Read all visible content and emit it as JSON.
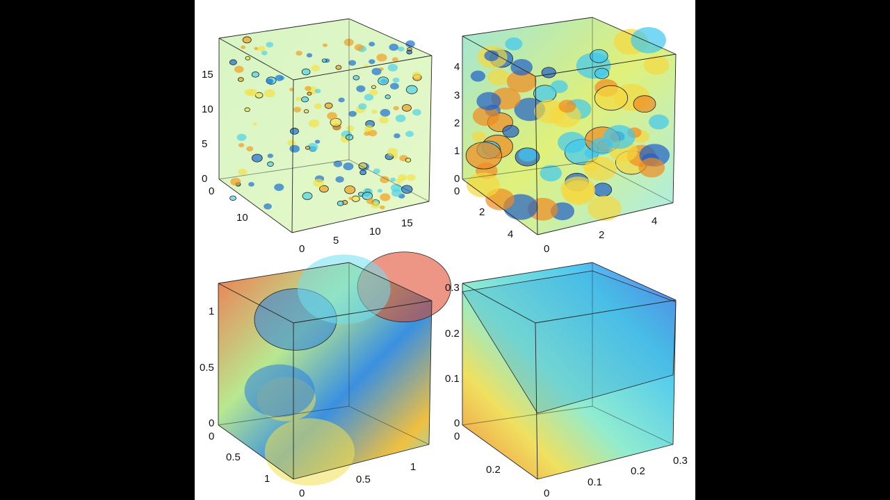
{
  "chart_data": [
    {
      "type": "volume-3d",
      "name": "top-left",
      "z_ticks": [
        "0",
        "5",
        "10",
        "15"
      ],
      "y_ticks": [
        "0",
        "10"
      ],
      "x_ticks": [
        "0",
        "5",
        "10",
        "15"
      ],
      "axis_range": [
        0,
        20
      ],
      "colors": [
        "#4fd3e8",
        "#f2e24a",
        "#f0a020",
        "#1a70d0"
      ]
    },
    {
      "type": "volume-3d",
      "name": "top-right",
      "z_ticks": [
        "0",
        "1",
        "2",
        "3",
        "4"
      ],
      "y_ticks": [
        "0",
        "2",
        "4"
      ],
      "x_ticks": [
        "0",
        "2",
        "4"
      ],
      "axis_range": [
        0,
        5
      ],
      "colors": [
        "#3ec8f0",
        "#f5d940",
        "#f08a20",
        "#2060c8"
      ]
    },
    {
      "type": "volume-3d",
      "name": "bottom-left",
      "z_ticks": [
        "0",
        "0.5",
        "1"
      ],
      "y_ticks": [
        "0",
        "0.5",
        "1"
      ],
      "x_ticks": [
        "0",
        "0.5",
        "1"
      ],
      "axis_range": [
        0,
        1.2
      ],
      "colors": [
        "#2a80e0",
        "#f0e050",
        "#e04020",
        "#6fe0f0"
      ]
    },
    {
      "type": "volume-3d",
      "name": "bottom-right",
      "z_ticks": [
        "0",
        "0.1",
        "0.2",
        "0.3"
      ],
      "y_ticks": [
        "0",
        "0.2"
      ],
      "x_ticks": [
        "0",
        "0.1",
        "0.2",
        "0.3"
      ],
      "axis_range": [
        0,
        0.32
      ],
      "colors": [
        "#5070e8",
        "#60d8f0",
        "#f0e060",
        "#f08030"
      ]
    }
  ]
}
